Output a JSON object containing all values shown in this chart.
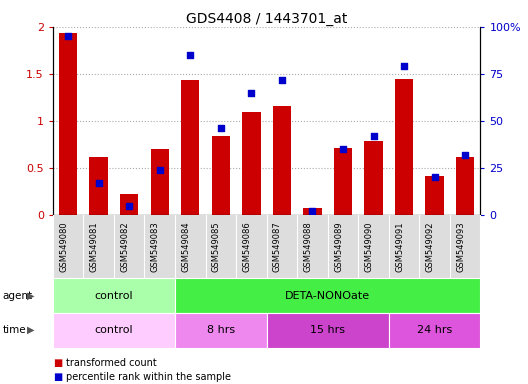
{
  "title": "GDS4408 / 1443701_at",
  "samples": [
    "GSM549080",
    "GSM549081",
    "GSM549082",
    "GSM549083",
    "GSM549084",
    "GSM549085",
    "GSM549086",
    "GSM549087",
    "GSM549088",
    "GSM549089",
    "GSM549090",
    "GSM549091",
    "GSM549092",
    "GSM549093"
  ],
  "transformed_count": [
    1.93,
    0.62,
    0.22,
    0.7,
    1.44,
    0.84,
    1.09,
    1.16,
    0.08,
    0.71,
    0.79,
    1.45,
    0.42,
    0.62
  ],
  "percentile_rank": [
    95,
    17,
    5,
    24,
    85,
    46,
    65,
    72,
    2,
    35,
    42,
    79,
    20,
    32
  ],
  "bar_color": "#cc0000",
  "dot_color": "#0000cc",
  "ylim_left": [
    0,
    2
  ],
  "ylim_right": [
    0,
    100
  ],
  "yticks_left": [
    0,
    0.5,
    1.0,
    1.5,
    2.0
  ],
  "ytick_labels_left": [
    "0",
    "0.5",
    "1",
    "1.5",
    "2"
  ],
  "yticks_right": [
    0,
    25,
    50,
    75,
    100
  ],
  "ytick_labels_right": [
    "0",
    "25",
    "50",
    "75",
    "100%"
  ],
  "agent_groups": [
    {
      "label": "control",
      "start": 0,
      "end": 4,
      "color": "#aaffaa"
    },
    {
      "label": "DETA-NONOate",
      "start": 4,
      "end": 14,
      "color": "#44ee44"
    }
  ],
  "time_groups": [
    {
      "label": "control",
      "start": 0,
      "end": 4,
      "color": "#ffccff"
    },
    {
      "label": "8 hrs",
      "start": 4,
      "end": 7,
      "color": "#ee88ee"
    },
    {
      "label": "15 hrs",
      "start": 7,
      "end": 11,
      "color": "#cc44cc"
    },
    {
      "label": "24 hrs",
      "start": 11,
      "end": 14,
      "color": "#dd55dd"
    }
  ],
  "legend_items": [
    {
      "label": "transformed count",
      "color": "#cc0000"
    },
    {
      "label": "percentile rank within the sample",
      "color": "#0000cc"
    }
  ],
  "grid_color": "#aaaaaa",
  "tick_label_color_left": "#cc0000",
  "tick_label_color_right": "#0000cc",
  "xticklabel_bg": "#dddddd"
}
